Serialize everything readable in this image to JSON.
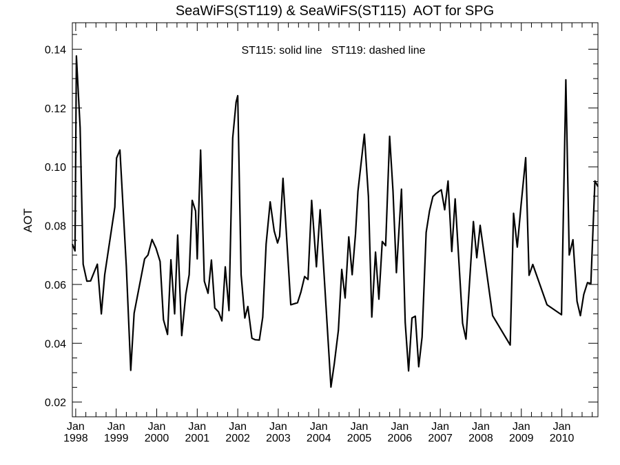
{
  "chart_data": {
    "type": "line",
    "title": "SeaWiFS(ST119) & SeaWiFS(ST115)  AOT for SPG",
    "annotation": "ST115: solid line   ST119: dashed line",
    "xlabel": "",
    "ylabel": "AOT",
    "x_unit": "months since Jan 1998",
    "xlim": [
      -1,
      154.7
    ],
    "ylim": [
      0.015,
      0.149
    ],
    "yticks": [
      0.02,
      0.04,
      0.06,
      0.08,
      0.1,
      0.12,
      0.14
    ],
    "ytick_labels": [
      "0.02",
      "0.04",
      "0.06",
      "0.08",
      "0.10",
      "0.12",
      "0.14"
    ],
    "xticks": [
      {
        "month": 0,
        "line1": "Jan",
        "line2": "1998"
      },
      {
        "month": 12,
        "line1": "Jan",
        "line2": "1999"
      },
      {
        "month": 24,
        "line1": "Jan",
        "line2": "2000"
      },
      {
        "month": 36,
        "line1": "Jan",
        "line2": "2001"
      },
      {
        "month": 48,
        "line1": "Jan",
        "line2": "2002"
      },
      {
        "month": 60,
        "line1": "Jan",
        "line2": "2003"
      },
      {
        "month": 72,
        "line1": "Jan",
        "line2": "2004"
      },
      {
        "month": 84,
        "line1": "Jan",
        "line2": "2005"
      },
      {
        "month": 96,
        "line1": "Jan",
        "line2": "2006"
      },
      {
        "month": 108,
        "line1": "Jan",
        "line2": "2007"
      },
      {
        "month": 120,
        "line1": "Jan",
        "line2": "2008"
      },
      {
        "month": 132,
        "line1": "Jan",
        "line2": "2009"
      },
      {
        "month": 144,
        "line1": "Jan",
        "line2": "2010"
      }
    ],
    "grid": false,
    "series": [
      {
        "name": "ST115",
        "style": "solid",
        "color": "#000000",
        "x": [
          -1,
          -0.2,
          0.2,
          1.3,
          2.2,
          3.3,
          4.4,
          6.4,
          7.6,
          8.6,
          11.6,
          12.1,
          13.1,
          15,
          16.3,
          17.3,
          20.4,
          21.4,
          22.6,
          23.8,
          25,
          26,
          27.2,
          28.2,
          29.3,
          30.2,
          31.4,
          32.6,
          33.6,
          34.5,
          35.5,
          36,
          37,
          38.1,
          39.2,
          40.2,
          41.2,
          42.3,
          43.3,
          44.3,
          45.4,
          46.5,
          47.5,
          48,
          49,
          50.1,
          51,
          52.2,
          53.2,
          54.4,
          55.4,
          56.4,
          57.6,
          58.8,
          59.8,
          60.4,
          61.4,
          63.7,
          65.7,
          66.7,
          67.8,
          68.8,
          69.9,
          71.3,
          72.4,
          75.6,
          76.6,
          77.8,
          78.8,
          79.8,
          80.9,
          81.9,
          82.9,
          83.6,
          85.5,
          86.7,
          87.7,
          88.8,
          89.8,
          90.8,
          91.8,
          93,
          94,
          95,
          96.5,
          97.6,
          98.6,
          99.6,
          100.6,
          101.6,
          102.6,
          103.8,
          104.8,
          105.8,
          106.8,
          108.3,
          109.3,
          110.3,
          111.4,
          112.4,
          114.6,
          115.6,
          117.8,
          118.8,
          119.8,
          123.5,
          128.7,
          129.7,
          130.8,
          131.9,
          133.3,
          134.3,
          135.4,
          139.6,
          143.9,
          145.2,
          146.2,
          147.3,
          148.5,
          149.5,
          150.5,
          151.6,
          152.6,
          153.8,
          154.7
        ],
        "y": [
          0.0737,
          0.0714,
          0.1377,
          0.1134,
          0.0669,
          0.0611,
          0.0612,
          0.0669,
          0.05,
          0.0633,
          0.0863,
          0.103,
          0.1057,
          0.066,
          0.0308,
          0.0502,
          0.0687,
          0.07,
          0.0753,
          0.0723,
          0.0678,
          0.048,
          0.043,
          0.0684,
          0.05,
          0.0768,
          0.0426,
          0.0566,
          0.0633,
          0.0886,
          0.085,
          0.0687,
          0.1057,
          0.0611,
          0.057,
          0.0683,
          0.052,
          0.0507,
          0.0476,
          0.066,
          0.0511,
          0.1098,
          0.122,
          0.1242,
          0.0633,
          0.0486,
          0.0525,
          0.0417,
          0.0412,
          0.0411,
          0.0489,
          0.0737,
          0.0881,
          0.0782,
          0.0741,
          0.0764,
          0.0961,
          0.0531,
          0.0538,
          0.0574,
          0.0627,
          0.0617,
          0.0886,
          0.066,
          0.0854,
          0.0251,
          0.0331,
          0.0444,
          0.0651,
          0.0554,
          0.0762,
          0.0633,
          0.0773,
          0.0917,
          0.1111,
          0.0899,
          0.0489,
          0.071,
          0.055,
          0.0746,
          0.0732,
          0.1104,
          0.0917,
          0.064,
          0.0924,
          0.0471,
          0.0306,
          0.0486,
          0.0492,
          0.032,
          0.0421,
          0.0777,
          0.085,
          0.0899,
          0.091,
          0.0922,
          0.0854,
          0.0952,
          0.0712,
          0.0891,
          0.0468,
          0.0414,
          0.0814,
          0.0691,
          0.0801,
          0.0494,
          0.0394,
          0.0842,
          0.0727,
          0.0868,
          0.1031,
          0.0631,
          0.0668,
          0.0531,
          0.0497,
          0.1296,
          0.07,
          0.0752,
          0.0543,
          0.0494,
          0.0566,
          0.0606,
          0.0603,
          0.0952,
          0.0933
        ]
      }
    ]
  }
}
